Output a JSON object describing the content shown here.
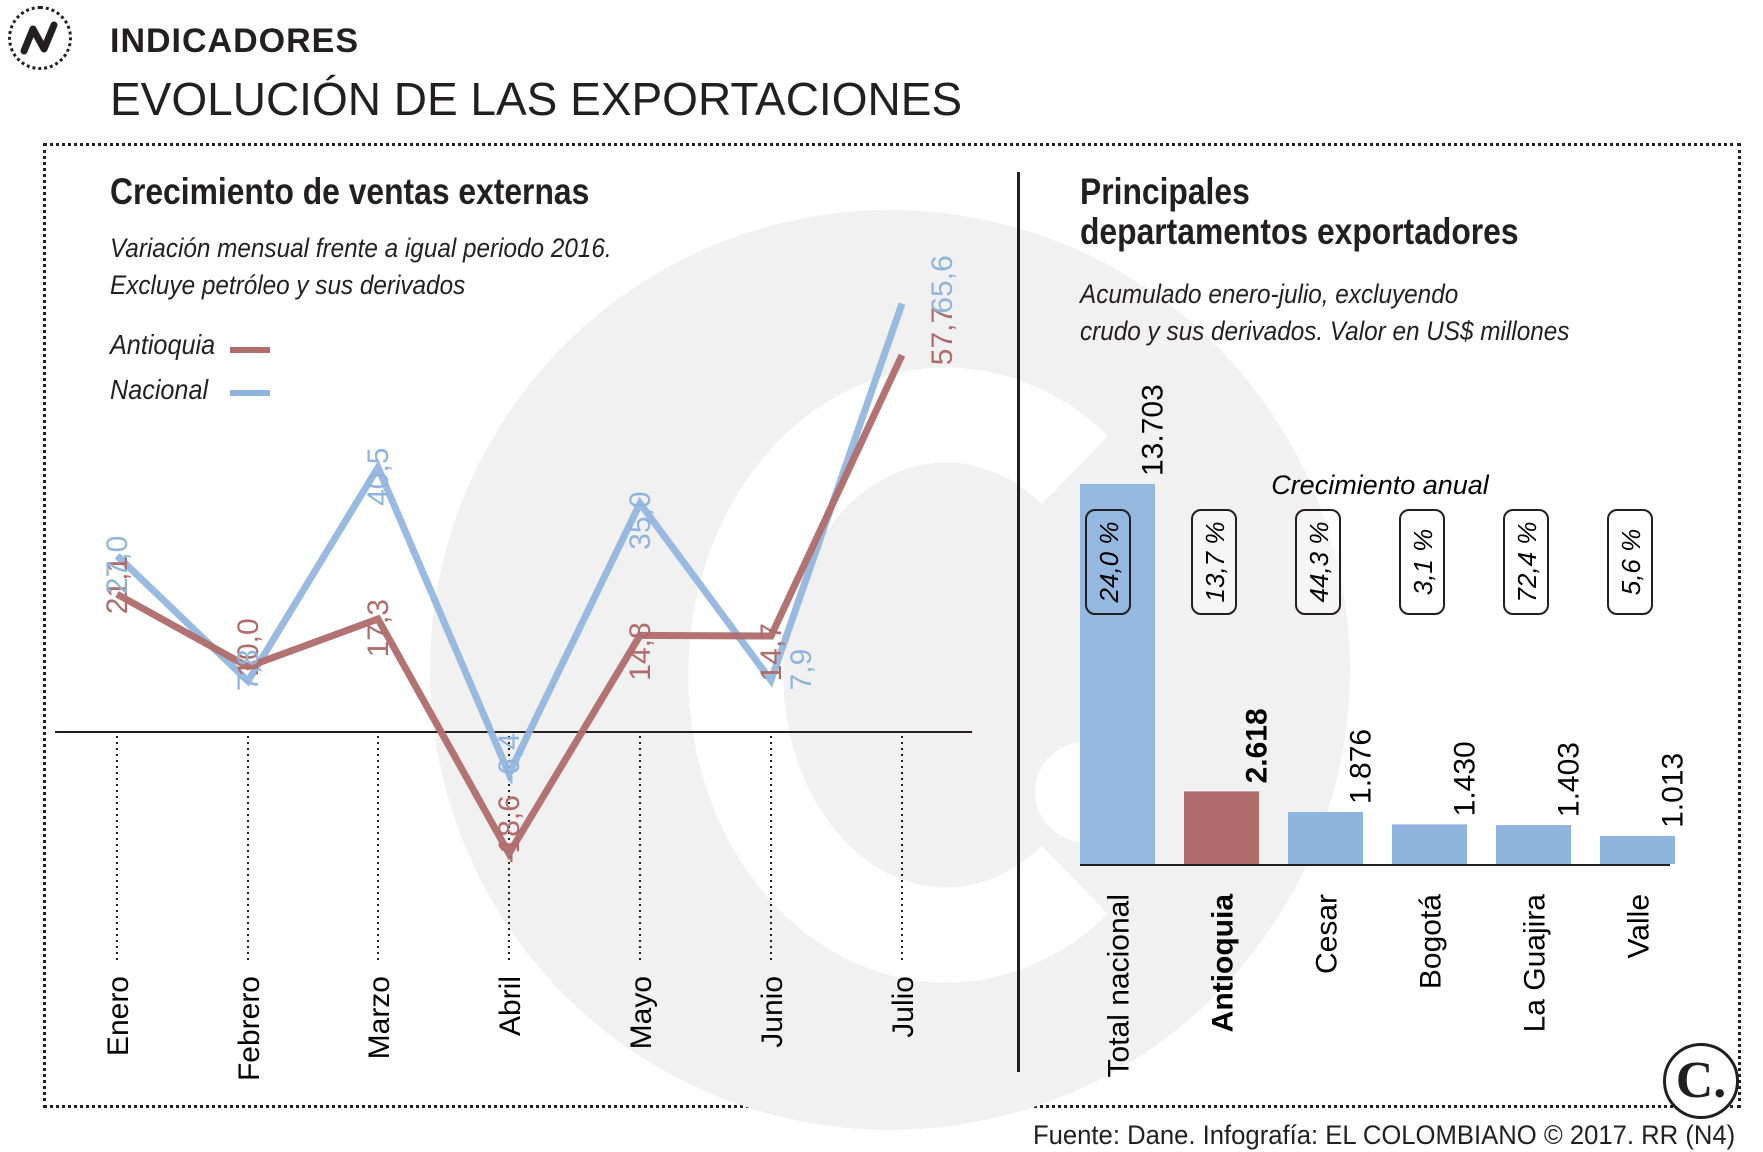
{
  "header": {
    "kicker": "INDICADORES",
    "headline": "EVOLUCIÓN DE LAS EXPORTACIONES"
  },
  "left": {
    "title": "Crecimiento de ventas externas",
    "subtitle_line1": "Variación mensual frente a igual periodo 2016.",
    "subtitle_line2": "Excluye petróleo y sus derivados",
    "legend": [
      {
        "name": "Antioquia",
        "color": "#b06b6b"
      },
      {
        "name": "Nacional",
        "color": "#8fb4de"
      }
    ]
  },
  "right": {
    "title_line1": "Principales",
    "title_line2": "departamentos exportadores",
    "subtitle_line1": "Acumulado enero-julio, excluyendo",
    "subtitle_line2": "crudo y sus derivados. Valor en US$ millones",
    "growth_caption": "Crecimiento anual"
  },
  "footer": {
    "source": "Fuente: Dane. Infografía: EL COLOMBIANO © 2017. RR (N4)",
    "logo_letter": "C."
  },
  "colors": {
    "antioquia": "#b06b6b",
    "nacional": "#8fb4de",
    "total_bar": "#8fb4de",
    "text": "#231f20"
  },
  "chart_data": [
    {
      "type": "line",
      "title": "Crecimiento de ventas externas",
      "categories": [
        "Enero",
        "Febrero",
        "Marzo",
        "Abril",
        "Mayo",
        "Junio",
        "Julio"
      ],
      "series": [
        {
          "name": "Antioquia",
          "values": [
            21.1,
            10.0,
            17.3,
            -18.6,
            14.8,
            14.7,
            57.7
          ],
          "labels": [
            "21,1",
            "10,0",
            "17,3",
            "-18,6",
            "14,8",
            "14,7",
            "57,7"
          ]
        },
        {
          "name": "Nacional",
          "values": [
            27.0,
            7.8,
            40.5,
            -6.4,
            35.0,
            7.9,
            65.6
          ],
          "labels": [
            "27,0",
            "7,8",
            "40,5",
            "-6,4",
            "35,0",
            "7,9",
            "65,6"
          ]
        }
      ],
      "ylim": [
        -20,
        70
      ],
      "xlabel": "",
      "ylabel": ""
    },
    {
      "type": "bar",
      "title": "Principales departamentos exportadores",
      "categories": [
        "Total nacional",
        "Antioquia",
        "Cesar",
        "Bogotá",
        "La Guajira",
        "Valle"
      ],
      "values": [
        13703,
        2618,
        1876,
        1430,
        1403,
        1013
      ],
      "value_labels": [
        "13.703",
        "2.618",
        "1.876",
        "1.430",
        "1.403",
        "1.013"
      ],
      "growth_labels": [
        "24,0 %",
        "13,7 %",
        "44,3 %",
        "3,1 %",
        "72,4 %",
        "5,6 %"
      ],
      "highlight": "Antioquia",
      "ylabel": "US$ millones"
    }
  ]
}
